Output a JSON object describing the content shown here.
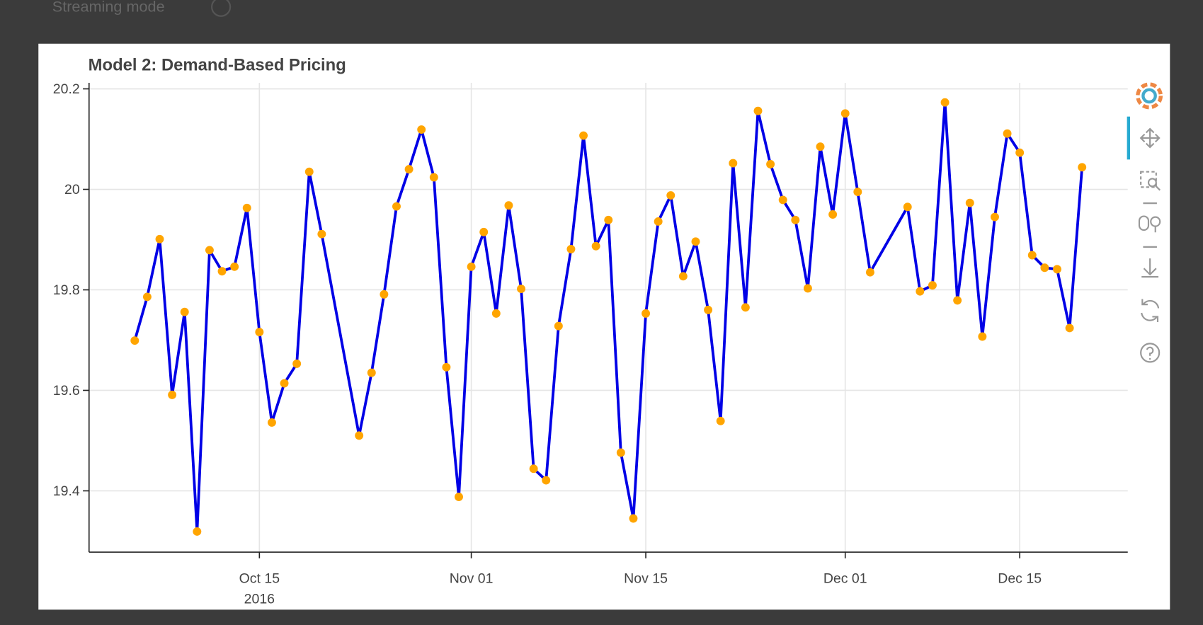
{
  "controls": {
    "streaming_label": "Streaming mode"
  },
  "chart_data": {
    "type": "line",
    "title": "Model 2: Demand-Based Pricing",
    "line_color": "#0000e6",
    "marker_color": "#ffa500",
    "grid": true,
    "x": [
      "2016-10-05",
      "2016-10-06",
      "2016-10-07",
      "2016-10-08",
      "2016-10-09",
      "2016-10-10",
      "2016-10-11",
      "2016-10-12",
      "2016-10-13",
      "2016-10-14",
      "2016-10-15",
      "2016-10-16",
      "2016-10-17",
      "2016-10-18",
      "2016-10-19",
      "2016-10-20",
      "2016-10-23",
      "2016-10-24",
      "2016-10-25",
      "2016-10-26",
      "2016-10-27",
      "2016-10-28",
      "2016-10-29",
      "2016-10-30",
      "2016-10-31",
      "2016-11-01",
      "2016-11-02",
      "2016-11-03",
      "2016-11-04",
      "2016-11-05",
      "2016-11-06",
      "2016-11-07",
      "2016-11-08",
      "2016-11-09",
      "2016-11-10",
      "2016-11-11",
      "2016-11-12",
      "2016-11-13",
      "2016-11-14",
      "2016-11-15",
      "2016-11-16",
      "2016-11-17",
      "2016-11-18",
      "2016-11-19",
      "2016-11-20",
      "2016-11-21",
      "2016-11-22",
      "2016-11-23",
      "2016-11-24",
      "2016-11-25",
      "2016-11-26",
      "2016-11-27",
      "2016-11-28",
      "2016-11-29",
      "2016-11-30",
      "2016-12-01",
      "2016-12-02",
      "2016-12-03",
      "2016-12-06",
      "2016-12-07",
      "2016-12-08",
      "2016-12-09",
      "2016-12-10",
      "2016-12-11",
      "2016-12-12",
      "2016-12-13",
      "2016-12-14",
      "2016-12-15",
      "2016-12-16",
      "2016-12-17",
      "2016-12-18",
      "2016-12-19",
      "2016-12-20"
    ],
    "values": [
      19.699,
      19.786,
      19.901,
      19.591,
      19.756,
      19.319,
      19.879,
      19.837,
      19.846,
      19.963,
      19.716,
      19.536,
      19.614,
      19.653,
      20.035,
      19.911,
      19.51,
      19.635,
      19.791,
      19.966,
      20.04,
      20.119,
      20.024,
      19.646,
      19.388,
      19.846,
      19.915,
      19.753,
      19.968,
      19.802,
      19.444,
      19.421,
      19.728,
      19.881,
      20.107,
      19.887,
      19.939,
      19.476,
      19.345,
      19.753,
      19.936,
      19.988,
      19.827,
      19.896,
      19.76,
      19.539,
      20.052,
      19.765,
      20.156,
      20.05,
      19.979,
      19.939,
      19.803,
      20.085,
      19.95,
      20.151,
      19.995,
      19.835,
      19.965,
      19.797,
      19.809,
      20.173,
      19.779,
      19.973,
      19.707,
      19.945,
      20.111,
      20.073,
      19.869,
      19.844,
      19.841,
      19.724,
      20.044
    ],
    "xlim": [
      "2016-10-01T08:00:00Z",
      "2016-12-23T16:00:00Z"
    ],
    "xticks": [
      {
        "value": "2016-10-15",
        "label": "Oct 15"
      },
      {
        "value": "2016-11-01",
        "label": "Nov 01"
      },
      {
        "value": "2016-11-15",
        "label": "Nov 15"
      },
      {
        "value": "2016-12-01",
        "label": "Dec 01"
      },
      {
        "value": "2016-12-15",
        "label": "Dec 15"
      }
    ],
    "x_year_label": {
      "value": "2016-10-15",
      "label": "2016"
    },
    "ylim": [
      19.278,
      20.212
    ],
    "yticks": [
      19.4,
      19.6,
      19.8,
      20,
      20.2
    ]
  }
}
